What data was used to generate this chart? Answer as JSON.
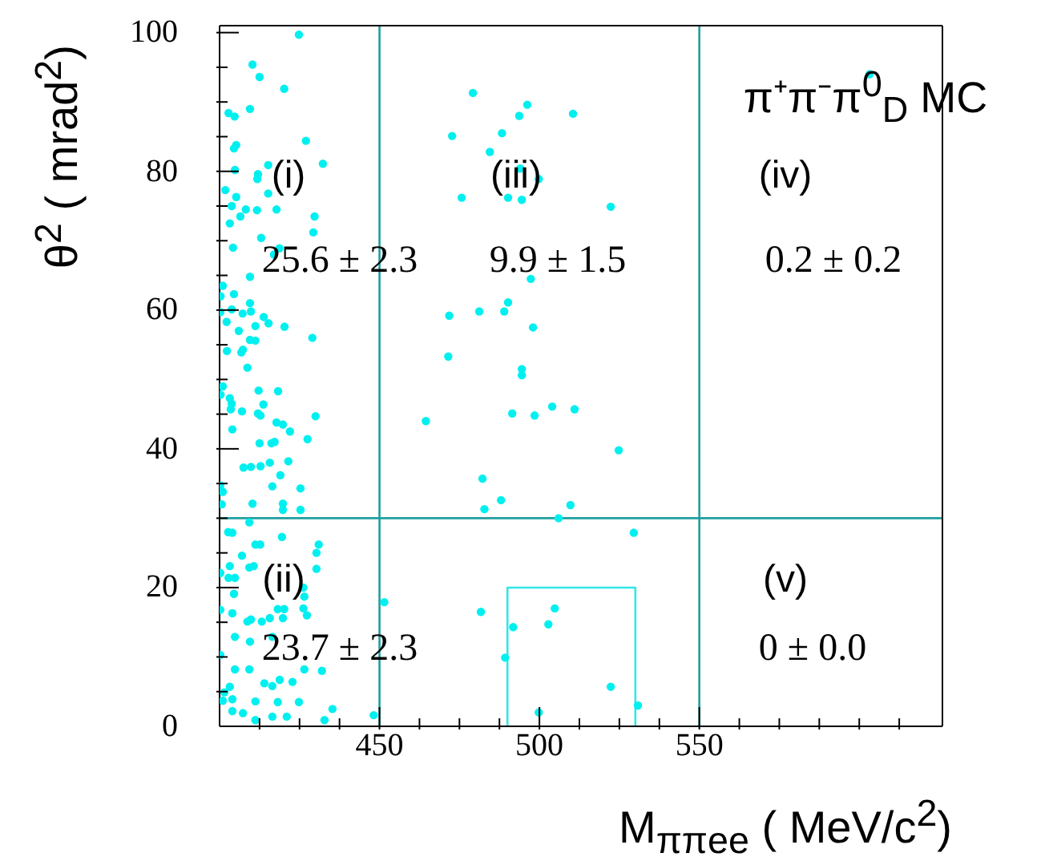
{
  "chart_data": {
    "type": "scatter",
    "xlabel": "M$_{ππee}$ ( MeV/c$^{2}$)",
    "ylabel": "θ$^{2}$ ( mrad$^{2}$)",
    "annotations": [
      "(i)",
      "(iii)",
      "(iv)",
      "(ii)",
      "(v)",
      "25.6 ± 2.3",
      "9.9 ± 1.5",
      "0.2 ± 0.2",
      "23.7 ± 2.3",
      "0 ± 0.0",
      "π⁺π⁻π$^{0}$$_{D}$ MC"
    ],
    "xlim": [
      400,
      626
    ],
    "ylim": [
      0,
      101
    ],
    "xticks": [
      {
        "value": 412.5,
        "label": null
      },
      {
        "value": 425,
        "label": null
      },
      {
        "value": 437.5,
        "label": null
      },
      450,
      {
        "value": 462.5,
        "label": null
      },
      {
        "value": 475,
        "label": null
      },
      {
        "value": 487.5,
        "label": null
      },
      500,
      {
        "value": 512.5,
        "label": null
      },
      {
        "value": 525,
        "label": null
      },
      {
        "value": 537.5,
        "label": null
      },
      550,
      {
        "value": 562.5,
        "label": null
      },
      {
        "value": 575,
        "label": null
      },
      {
        "value": 587.5,
        "label": null
      },
      {
        "value": 600,
        "label": null
      },
      {
        "value": 612.5,
        "label": null
      }
    ],
    "yticks": [
      0,
      {
        "value": 5,
        "label": null
      },
      {
        "value": 10,
        "label": null
      },
      {
        "value": 15,
        "label": null
      },
      20,
      {
        "value": 25,
        "label": null
      },
      {
        "value": 30,
        "label": null
      },
      {
        "value": 35,
        "label": null
      },
      40,
      {
        "value": 45,
        "label": null
      },
      {
        "value": 50,
        "label": null
      },
      {
        "value": 55,
        "label": null
      },
      60,
      {
        "value": 65,
        "label": null
      },
      {
        "value": 70,
        "label": null
      },
      {
        "value": 75,
        "label": null
      },
      80,
      {
        "value": 85,
        "label": null
      },
      {
        "value": 90,
        "label": null
      },
      {
        "value": 95,
        "label": null
      },
      100
    ],
    "ref_lines": [
      {
        "axis": "x",
        "value": 450,
        "color": "#1f9e9e"
      },
      {
        "axis": "x",
        "value": 550,
        "color": "#1f9e9e"
      },
      {
        "axis": "y",
        "value": 30,
        "color": "#1f9e9e"
      }
    ],
    "series": [
      {
        "color": "#00f0f0",
        "marker": "circle",
        "x": [
          424.8,
          410.3,
          412.5,
          420.2,
          402.8,
          404.7,
          409.5,
          427,
          405.2,
          404.5,
          432.3,
          415.2,
          404.8,
          412,
          411.8,
          401.8,
          405.2,
          415.2,
          403.8,
          408.2,
          411.7,
          417.8,
          406.5,
          429.7,
          403.2,
          429.3,
          413,
          404.2,
          418.7,
          417,
          409.5,
          401,
          400.3,
          404.5,
          409.5,
          400.2,
          403.8,
          407.2,
          409.8,
          413.8,
          415.3,
          402.2,
          411.2,
          420.3,
          406,
          409.5,
          411.2,
          429,
          402.3,
          406.8,
          407.3,
          408.7,
          401,
          412.2,
          418.3,
          400.3,
          403.2,
          403.8,
          413.7,
          403.5,
          407,
          412,
          412.8,
          430,
          417.8,
          419.8,
          404,
          422,
          427.5,
          412.5,
          416.2,
          417.2,
          421.5,
          407.5,
          409.8,
          412.8,
          415.7,
          419,
          400.2,
          401,
          416.5,
          425.3,
          400.7,
          410.3,
          419.8,
          419.8,
          425.3,
          409.3,
          402.7,
          404,
          419.5,
          411.2,
          412.7,
          431,
          430.3,
          407,
          403.2,
          409.3,
          410.7,
          400.2,
          402.8,
          404.8,
          430.3,
          404.5,
          426.2,
          426.5,
          400.2,
          418.2,
          420.2,
          426.2,
          404,
          408.7,
          409.8,
          413.2,
          415.7,
          419.8,
          427.3,
          404.8,
          400.2,
          409.5,
          416.5,
          404.8,
          409.3,
          426.5,
          432,
          414,
          416.5,
          418.8,
          422.8,
          403.2,
          401.5,
          418.2,
          424.8,
          411.2,
          401,
          404,
          404,
          407.3,
          416.5,
          421,
          411.2,
          432.8,
          435.3,
          448.2,
          479.2,
          496.2,
          493.7,
          510.5,
          472.7,
          488.3,
          484.5,
          494,
          499.8,
          475.7,
          490.2,
          494.5,
          522.3,
          497.3,
          490.2,
          471.8,
          481.2,
          489,
          498,
          471.5,
          494.5,
          494.5,
          464.5,
          491.5,
          498.5,
          504,
          511,
          524.8,
          482.2,
          488,
          482.8,
          509.7,
          506,
          529.5,
          451.5,
          481.7,
          504.8,
          491.8,
          502.8,
          489.3,
          522.3,
          530.8,
          499.8,
          603.2
        ],
        "values": [
          99.7,
          95.4,
          93.6,
          91.9,
          88.4,
          87.9,
          89.0,
          84.4,
          83.8,
          83.3,
          81.1,
          80.9,
          80.2,
          79.6,
          78.9,
          77.3,
          76.3,
          76.8,
          75.0,
          74.5,
          74.4,
          74.5,
          73.5,
          73.5,
          72.5,
          71.2,
          70.4,
          69.0,
          68.9,
          68.0,
          64.8,
          63.5,
          62.0,
          62.3,
          61.0,
          59.7,
          60.1,
          59.5,
          59.8,
          59.0,
          58.1,
          58.3,
          57.7,
          57.6,
          57.0,
          55.7,
          55.6,
          56.0,
          54.1,
          53.9,
          54.3,
          51.7,
          49.0,
          48.4,
          48.3,
          47.8,
          47.3,
          46.5,
          46.4,
          45.7,
          45.4,
          45.1,
          44.8,
          44.7,
          43.8,
          43.5,
          42.8,
          42.5,
          41.4,
          40.8,
          40.8,
          41.0,
          38.2,
          37.3,
          37.4,
          37.5,
          38.0,
          36.2,
          34.7,
          33.8,
          34.6,
          34.3,
          32.0,
          32.1,
          32.1,
          31.2,
          31.2,
          29.4,
          28.0,
          27.9,
          27.3,
          26.2,
          26.2,
          26.2,
          25.0,
          24.6,
          23.1,
          22.9,
          23.1,
          22.1,
          21.4,
          21.4,
          22.7,
          19.1,
          20.0,
          18.7,
          16.8,
          16.9,
          16.9,
          17.0,
          16.3,
          15.1,
          15.4,
          15.1,
          15.6,
          15.6,
          16.0,
          12.9,
          10.3,
          12.2,
          12.9,
          8.2,
          8.2,
          8.2,
          8.0,
          6.2,
          5.8,
          6.7,
          6.4,
          5.7,
          4.9,
          3.5,
          3.5,
          3.6,
          3.7,
          3.9,
          2.2,
          1.9,
          1.4,
          1.4,
          0.9,
          0.9,
          2.5,
          1.6,
          91.3,
          89.6,
          88.0,
          88.3,
          85.1,
          85.5,
          82.8,
          80.4,
          78.9,
          76.2,
          76.2,
          75.9,
          74.9,
          64.5,
          61.1,
          59.2,
          59.8,
          59.8,
          57.5,
          53.3,
          51.5,
          50.6,
          44.0,
          45.1,
          44.8,
          46.1,
          45.7,
          39.8,
          35.7,
          32.6,
          31.3,
          31.9,
          30.0,
          27.9,
          17.9,
          16.5,
          17.0,
          14.3,
          14.7,
          9.9,
          5.7,
          3.0,
          2.0,
          94.0
        ]
      },
      {
        "type": "line",
        "color": "#33e6e6",
        "x": [
          490,
          490,
          530,
          530
        ],
        "values": [
          0,
          20,
          20,
          0
        ]
      }
    ]
  }
}
